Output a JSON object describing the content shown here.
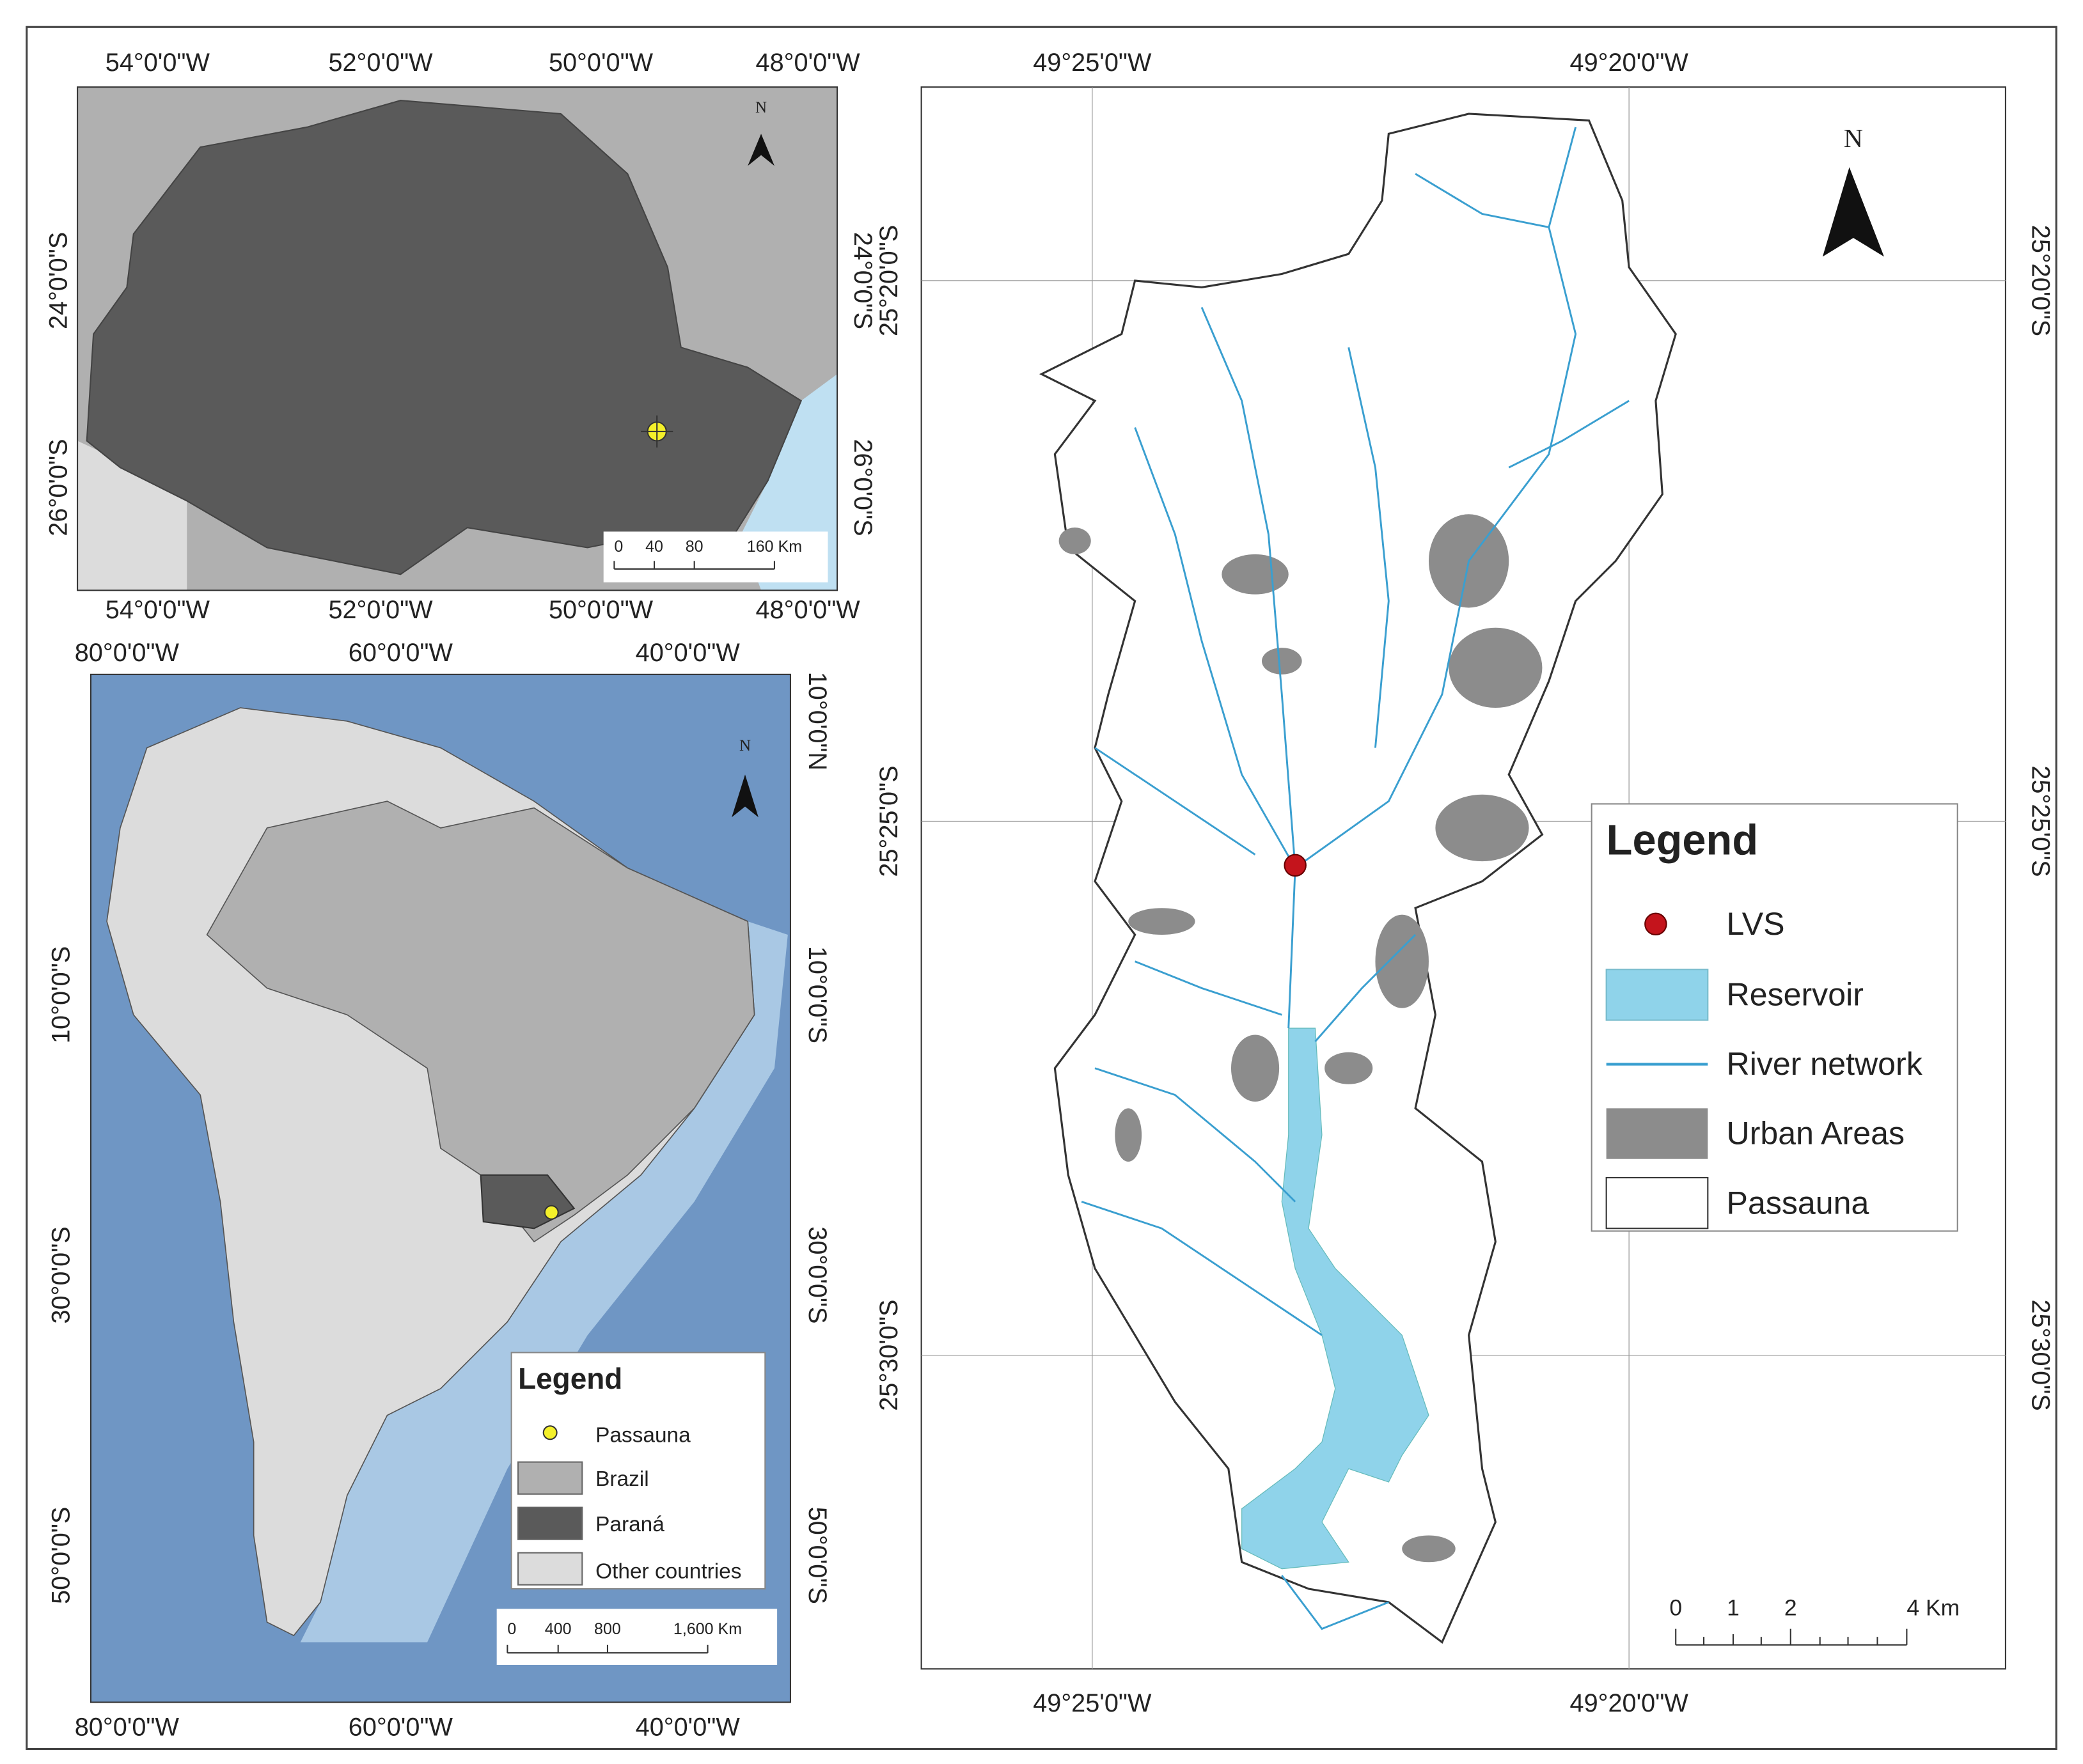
{
  "panels": {
    "parana": {
      "top_labels": [
        "54°0'0\"W",
        "52°0'0\"W",
        "50°0'0\"W",
        "48°0'0\"W"
      ],
      "bottom_labels": [
        "54°0'0\"W",
        "52°0'0\"W",
        "50°0'0\"W",
        "48°0'0\"W"
      ],
      "left_labels": [
        "24°0'0\"S",
        "26°0'0\"S"
      ],
      "right_labels": [
        "24°0'0\"S",
        "26°0'0\"S"
      ],
      "north": "N",
      "scale_labels": [
        "0",
        "40",
        "80",
        "160 Km"
      ]
    },
    "south_america": {
      "top_labels": [
        "80°0'0\"W",
        "60°0'0\"W",
        "40°0'0\"W"
      ],
      "bottom_labels": [
        "80°0'0\"W",
        "60°0'0\"W",
        "40°0'0\"W"
      ],
      "left_labels": [
        "10°0'0\"S",
        "30°0'0\"S",
        "50°0'0\"S"
      ],
      "right_labels": [
        "10°0'0\"N",
        "10°0'0\"S",
        "30°0'0\"S",
        "50°0'0\"S"
      ],
      "north": "N",
      "legend": {
        "title": "Legend",
        "items": [
          "Passauna",
          "Brazil",
          "Paraná",
          "Other countries"
        ]
      },
      "scale_labels": [
        "0",
        "400",
        "800",
        "1,600 Km"
      ]
    },
    "passauna": {
      "top_labels": [
        "49°25'0\"W",
        "49°20'0\"W"
      ],
      "bottom_labels": [
        "49°25'0\"W",
        "49°20'0\"W"
      ],
      "left_labels": [
        "25°20'0\"S",
        "25°25'0\"S",
        "25°30'0\"S"
      ],
      "right_labels": [
        "25°20'0\"S",
        "25°25'0\"S",
        "25°30'0\"S"
      ],
      "north": "N",
      "legend": {
        "title": "Legend",
        "items": [
          "LVS",
          "Reservoir",
          "River network",
          "Urban Areas",
          "Passauna"
        ]
      },
      "scale_labels": [
        "0",
        "1",
        "2",
        "4 Km"
      ]
    }
  }
}
